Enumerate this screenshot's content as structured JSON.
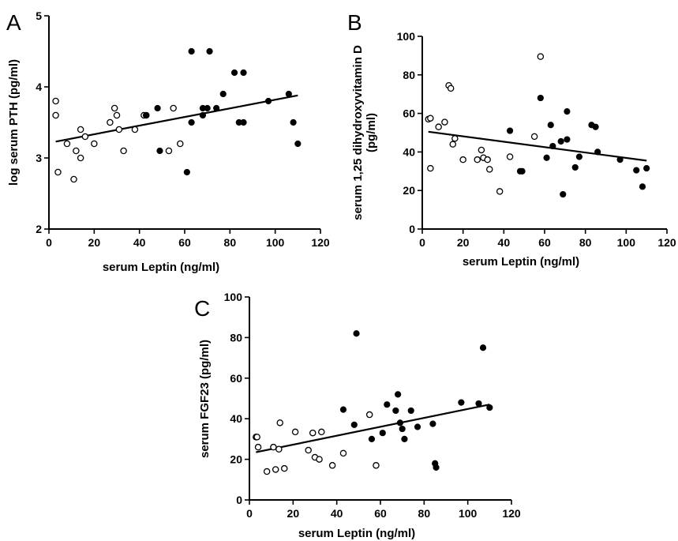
{
  "chart_data": [
    {
      "type": "scatter",
      "panel": "A",
      "xlabel": "serum Leptin (ng/ml)",
      "ylabel": "log serum PTH (pg/ml)",
      "xlim": [
        0,
        120
      ],
      "ylim": [
        2,
        5
      ],
      "xticks": [
        0,
        20,
        40,
        60,
        80,
        100,
        120
      ],
      "yticks": [
        2,
        3,
        4,
        5
      ],
      "grid": false,
      "fit_line": {
        "x": [
          3,
          110
        ],
        "y": [
          3.23,
          3.88
        ]
      },
      "series": [
        {
          "marker": "open-circle",
          "x": [
            3,
            3,
            4,
            8,
            11,
            12,
            14,
            14,
            16,
            20,
            27,
            29,
            30,
            31,
            33,
            38,
            42,
            43,
            53,
            55,
            58
          ],
          "y": [
            3.6,
            3.8,
            2.8,
            3.2,
            2.7,
            3.1,
            3.4,
            3.0,
            3.3,
            3.2,
            3.5,
            3.7,
            3.6,
            3.4,
            3.1,
            3.4,
            3.6,
            3.6,
            3.1,
            3.7,
            3.2
          ]
        },
        {
          "marker": "filled-circle",
          "x": [
            43,
            48,
            49,
            61,
            63,
            63,
            68,
            68,
            70,
            71,
            74,
            77,
            82,
            84,
            86,
            86,
            97,
            106,
            108,
            110
          ],
          "y": [
            3.6,
            3.7,
            3.1,
            2.8,
            3.5,
            4.5,
            3.6,
            3.7,
            3.7,
            4.5,
            3.7,
            3.9,
            4.2,
            3.5,
            4.2,
            3.5,
            3.8,
            3.9,
            3.5,
            3.2
          ]
        }
      ]
    },
    {
      "type": "scatter",
      "panel": "B",
      "xlabel": "serum Leptin (ng/ml)",
      "ylabel": "serum 1,25 dihydroxyvitamin D (pg/ml)",
      "ylabel_lines": [
        "serum 1,25 dihydroxyvitamin D",
        "(pg/ml)"
      ],
      "xlim": [
        0,
        120
      ],
      "ylim": [
        0,
        100
      ],
      "xticks": [
        0,
        20,
        40,
        60,
        80,
        100,
        120
      ],
      "yticks": [
        0,
        20,
        40,
        60,
        80,
        100
      ],
      "grid": false,
      "fit_line": {
        "x": [
          3,
          110
        ],
        "y": [
          50.5,
          35.5
        ]
      },
      "series": [
        {
          "marker": "open-circle",
          "x": [
            3,
            4,
            4,
            8,
            11,
            13,
            14,
            15,
            16,
            20,
            27,
            29,
            30,
            32,
            33,
            38,
            43,
            55,
            58
          ],
          "y": [
            57,
            57.5,
            31.5,
            53,
            55.5,
            74.5,
            73,
            44,
            47,
            36,
            36,
            41,
            37,
            36,
            31,
            19.5,
            37.5,
            48,
            89.5
          ]
        },
        {
          "marker": "filled-circle",
          "x": [
            43,
            48,
            49,
            58,
            61,
            63,
            64,
            68,
            69,
            71,
            71,
            75,
            77,
            83,
            85,
            86,
            97,
            105,
            108,
            110
          ],
          "y": [
            51,
            30,
            30,
            68,
            37,
            54,
            43,
            45.5,
            18,
            61,
            46.5,
            32,
            37.5,
            54,
            53,
            40,
            36,
            30.5,
            22,
            31.5
          ]
        }
      ]
    },
    {
      "type": "scatter",
      "panel": "C",
      "xlabel": "serum Leptin (ng/ml)",
      "ylabel": "serum FGF23 (pg/ml)",
      "xlim": [
        0,
        120
      ],
      "ylim": [
        0,
        100
      ],
      "xticks": [
        0,
        20,
        40,
        60,
        80,
        100,
        120
      ],
      "yticks": [
        0,
        20,
        40,
        60,
        80,
        100
      ],
      "grid": false,
      "fit_line": {
        "x": [
          3,
          110
        ],
        "y": [
          23.5,
          47
        ]
      },
      "series": [
        {
          "marker": "open-circle",
          "x": [
            3,
            3.5,
            4,
            8,
            11,
            12,
            13.5,
            14,
            16,
            21,
            27,
            29,
            30,
            32,
            33,
            38,
            43,
            55,
            58
          ],
          "y": [
            31,
            31,
            26,
            14,
            26,
            15,
            25,
            38,
            15.5,
            33.5,
            24.5,
            33,
            21,
            20,
            33.5,
            17,
            23,
            42,
            17
          ]
        },
        {
          "marker": "filled-circle",
          "x": [
            43,
            48,
            49,
            56,
            61,
            63,
            67,
            68,
            69,
            70,
            71,
            74,
            77,
            84,
            85,
            85.5,
            97,
            105,
            107,
            110
          ],
          "y": [
            44.5,
            37,
            82,
            30,
            33,
            47,
            44,
            52,
            38,
            35,
            30,
            44,
            36,
            37.5,
            18,
            16,
            48,
            47.5,
            75,
            45.5
          ]
        }
      ]
    }
  ]
}
